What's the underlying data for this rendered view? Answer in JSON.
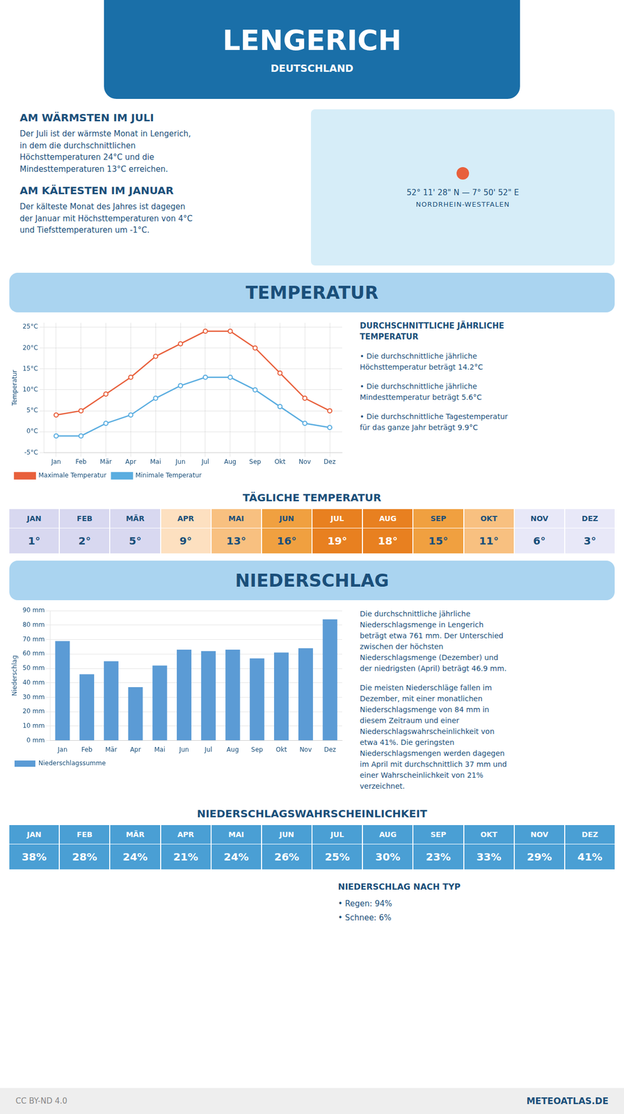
{
  "title": "LENGERICH",
  "subtitle": "DEUTSCHLAND",
  "annotations": [
    "AM WÄRMSTEN IM JULI",
    "Der Juli ist der wärmste Monat in Lengerich,\nin dem die durchschnittlichen\nHöchsttemperaturen 24°C und die\nMindesttemperaturen 13°C erreichen.",
    "AM KÄLTESTEN IM JANUAR",
    "Der kälteste Monat des Jahres ist dagegen\nder Januar mit Höchsttemperaturen von 4°C\nund Tiefsttemperaturen um -1°C.",
    "52° 11' 28\" N — 7° 50' 52\" E",
    "NORDRHEIN-WESTFALEN",
    "NIEDERSCHLAG NACH TYP",
    "• Regen: 94%",
    "• Schnee: 6%",
    "CC BY-ND 4.0",
    "METEOATLAS.DE"
  ],
  "chart_data": [
    {
      "type": "line",
      "title": "TEMPERATUR",
      "ylabel": "Temperatur",
      "categories": [
        "Jan",
        "Feb",
        "Mär",
        "Apr",
        "Mai",
        "Jun",
        "Jul",
        "Aug",
        "Sep",
        "Okt",
        "Nov",
        "Dez"
      ],
      "series": [
        {
          "name": "Maximale Temperatur",
          "color": "#e8603c",
          "marker": "circle",
          "line_style": "solid",
          "values": [
            4,
            5,
            9,
            13,
            18,
            21,
            24,
            24,
            20,
            14,
            8,
            5
          ]
        },
        {
          "name": "Minimale Temperatur",
          "color": "#5aade0",
          "marker": "circle",
          "line_style": "solid",
          "values": [
            -1,
            -1,
            2,
            4,
            8,
            11,
            13,
            13,
            10,
            6,
            2,
            1
          ]
        }
      ],
      "ylim": [
        -5,
        26
      ],
      "yticks": [
        {
          "value": -5,
          "label": "-5°C"
        },
        {
          "value": 0,
          "label": "0°C"
        },
        {
          "value": 5,
          "label": "5°C"
        },
        {
          "value": 10,
          "label": "10°C"
        },
        {
          "value": 15,
          "label": "15°C"
        },
        {
          "value": 20,
          "label": "20°C"
        },
        {
          "value": 25,
          "label": "25°C"
        }
      ],
      "grid": true,
      "legend": "lower left",
      "annotations": [
        "DURCHSCHNITTLICHE JÄHRLICHE\nTEMPERATUR",
        "• Die durchschnittliche jährliche\nHöchsttemperatur beträgt 14.2°C",
        "• Die durchschnittliche jährliche\nMindesttemperatur beträgt 5.6°C",
        "• Die durchschnittliche Tagestemperatur\nfür das ganze Jahr beträgt 9.9°C"
      ]
    },
    {
      "type": "table",
      "title": "TÄGLICHE TEMPERATUR",
      "categories": [
        "JAN",
        "FEB",
        "MÄR",
        "APR",
        "MAI",
        "JUN",
        "JUL",
        "AUG",
        "SEP",
        "OKT",
        "NOV",
        "DEZ"
      ],
      "values": [
        1,
        2,
        5,
        9,
        13,
        16,
        19,
        18,
        15,
        11,
        6,
        3
      ],
      "value_labels": [
        "1°",
        "2°",
        "5°",
        "9°",
        "13°",
        "16°",
        "19°",
        "18°",
        "15°",
        "11°",
        "6°",
        "3°"
      ],
      "colors": [
        "#d8d8f0",
        "#d8d8f0",
        "#d8d8f0",
        "#fde0c0",
        "#f8c080",
        "#f0a040",
        "#e88020",
        "#e88020",
        "#f0a040",
        "#f8c080",
        "#e8e8f8",
        "#e8e8f8"
      ]
    },
    {
      "type": "bar",
      "title": "NIEDERSCHLAG",
      "ylabel": "Niederschlag",
      "categories": [
        "Jan",
        "Feb",
        "Mär",
        "Apr",
        "Mai",
        "Jun",
        "Jul",
        "Aug",
        "Sep",
        "Okt",
        "Nov",
        "Dez"
      ],
      "series": [
        {
          "name": "Niederschlagssumme",
          "color": "#5b9bd5",
          "values": [
            69,
            46,
            55,
            37,
            52,
            63,
            62,
            63,
            57,
            61,
            64,
            84
          ]
        }
      ],
      "ylim": [
        0,
        90
      ],
      "yticks": [
        {
          "value": 0,
          "label": "0 mm"
        },
        {
          "value": 10,
          "label": "10 mm"
        },
        {
          "value": 20,
          "label": "20 mm"
        },
        {
          "value": 30,
          "label": "30 mm"
        },
        {
          "value": 40,
          "label": "40 mm"
        },
        {
          "value": 50,
          "label": "50 mm"
        },
        {
          "value": 60,
          "label": "60 mm"
        },
        {
          "value": 70,
          "label": "70 mm"
        },
        {
          "value": 80,
          "label": "80 mm"
        },
        {
          "value": 90,
          "label": "90 mm"
        }
      ],
      "grid": "y",
      "legend": "lower left",
      "annotations": [
        "Die durchschnittliche jährliche\nNiederschlagsmenge in Lengerich\nbeträgt etwa 761 mm. Der Unterschied\nzwischen der höchsten\nNiederschlagsmenge (Dezember) und\nder niedrigsten (April) beträgt 46.9 mm.",
        "Die meisten Niederschläge fallen im\nDezember, mit einer monatlichen\nNiederschlagsmenge von 84 mm in\ndiesem Zeitraum und einer\nNiederschlagswahrscheinlichkeit von\netwa 41%. Die geringsten\nNiederschlagsmengen werden dagegen\nim April mit durchschnittlich 37 mm und\neiner Wahrscheinlichkeit von 21%\nverzeichnet."
      ]
    },
    {
      "type": "table",
      "title": "NIEDERSCHLAGSWAHRSCHEINLICHKEIT",
      "categories": [
        "JAN",
        "FEB",
        "MÄR",
        "APR",
        "MAI",
        "JUN",
        "JUL",
        "AUG",
        "SEP",
        "OKT",
        "NOV",
        "DEZ"
      ],
      "values": [
        38,
        28,
        24,
        21,
        24,
        26,
        25,
        30,
        23,
        33,
        29,
        41
      ],
      "value_labels": [
        "38%",
        "28%",
        "24%",
        "21%",
        "24%",
        "26%",
        "25%",
        "30%",
        "23%",
        "33%",
        "29%",
        "41%"
      ],
      "color": "#4a9fd4"
    }
  ]
}
